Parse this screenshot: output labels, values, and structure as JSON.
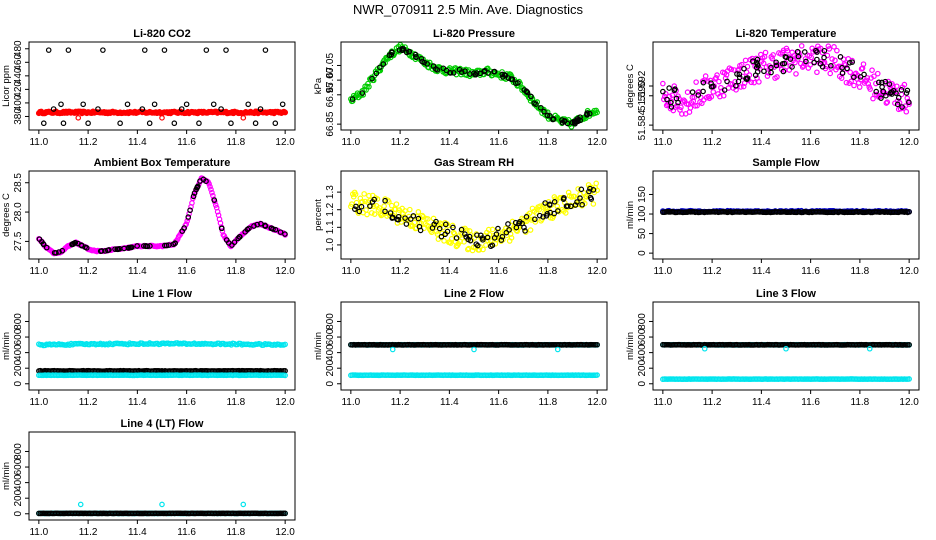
{
  "title": "NWR_070911  2.5 Min. Ave. Diagnostics",
  "chart_data": [
    {
      "type": "scatter",
      "id": "co2",
      "title": "Li-820 CO2",
      "ylabel": "Licor ppm",
      "xlim": [
        11.0,
        12.0
      ],
      "ylim": [
        360,
        490
      ],
      "xticks": [
        "11.0",
        "11.2",
        "11.4",
        "11.6",
        "11.8",
        "12.0"
      ],
      "yticks": [
        "380",
        "400",
        "420",
        "440",
        "460",
        "480"
      ],
      "series": [
        {
          "color": "#ff0000",
          "values": [
            {
              "x": [
                11.0,
                12.0
              ],
              "y": 386,
              "kind": "band"
            },
            {
              "x": [
                11.16,
                11.5,
                11.83
              ],
              "y": [
                378,
                378,
                378
              ]
            }
          ]
        },
        {
          "color": "#000000",
          "values": [
            {
              "x": [
                11.04,
                11.09,
                11.12,
                11.18,
                11.26,
                11.36,
                11.43,
                11.47,
                11.51,
                11.6,
                11.68,
                11.71,
                11.76,
                11.85,
                11.92,
                11.99
              ],
              "y": [
                478,
                398,
                478,
                398,
                478,
                398,
                478,
                398,
                478,
                398,
                478,
                398,
                478,
                398,
                478,
                398
              ]
            },
            {
              "x": [
                11.02,
                11.1,
                11.2,
                11.33,
                11.45,
                11.55,
                11.65,
                11.78,
                11.88,
                11.96
              ],
              "y": [
                370,
                370,
                370,
                370,
                370,
                370,
                370,
                370,
                370,
                370
              ]
            },
            {
              "x": [
                11.06,
                11.24,
                11.42,
                11.58,
                11.74,
                11.9
              ],
              "y": [
                391,
                391,
                391,
                391,
                391,
                391
              ]
            }
          ]
        }
      ]
    },
    {
      "type": "scatter",
      "id": "pressure",
      "title": "Li-820 Pressure",
      "ylabel": "kPa",
      "xlim": [
        11.0,
        12.0
      ],
      "ylim": [
        66.83,
        67.13
      ],
      "xticks": [
        "11.0",
        "11.2",
        "11.4",
        "11.6",
        "11.8",
        "12.0"
      ],
      "yticks": [
        "66.85",
        "66.95",
        "67.00",
        "67.05"
      ],
      "curve": {
        "x": [
          11.0,
          11.05,
          11.1,
          11.15,
          11.2,
          11.25,
          11.3,
          11.35,
          11.4,
          11.45,
          11.5,
          11.55,
          11.6,
          11.65,
          11.7,
          11.75,
          11.8,
          11.85,
          11.9,
          11.95,
          12.0
        ],
        "y": [
          66.93,
          66.96,
          67.02,
          67.08,
          67.11,
          67.09,
          67.06,
          67.04,
          67.03,
          67.03,
          67.02,
          67.03,
          67.02,
          67.01,
          66.97,
          66.92,
          66.88,
          66.86,
          66.85,
          66.88,
          66.9
        ]
      },
      "series": [
        {
          "color": "#00cc00",
          "spread": 0.012
        },
        {
          "color": "#000000",
          "spread": 0.006
        }
      ]
    },
    {
      "type": "scatter",
      "id": "temperature",
      "title": "Li-820 Temperature",
      "ylabel": "degrees C",
      "xlim": [
        11.0,
        12.0
      ],
      "ylim": [
        51.583,
        51.601
      ],
      "xticks": [
        "11.0",
        "11.2",
        "11.4",
        "11.6",
        "11.8",
        "12.0"
      ],
      "yticks": [
        "51.584",
        "51.590",
        "51.592"
      ],
      "curve": {
        "x": [
          11.0,
          11.1,
          11.2,
          11.3,
          11.4,
          11.5,
          11.6,
          11.7,
          11.8,
          11.9,
          12.0
        ],
        "y": [
          51.59,
          51.589,
          51.592,
          51.594,
          51.596,
          51.597,
          51.598,
          51.597,
          51.594,
          51.591,
          51.589
        ]
      },
      "series": [
        {
          "color": "#ff00ff",
          "spread": 0.003
        },
        {
          "color": "#000000",
          "spread": 0.002
        }
      ]
    },
    {
      "type": "scatter",
      "id": "ambient",
      "title": "Ambient Box Temperature",
      "ylabel": "degrees C",
      "xlim": [
        11.0,
        12.0
      ],
      "ylim": [
        27.2,
        28.7
      ],
      "xticks": [
        "11.0",
        "11.2",
        "11.4",
        "11.6",
        "11.8",
        "12.0"
      ],
      "yticks": [
        "27.5",
        "28.0",
        "28.5"
      ],
      "curve": {
        "x": [
          11.0,
          11.03,
          11.06,
          11.09,
          11.12,
          11.15,
          11.18,
          11.21,
          11.25,
          11.3,
          11.35,
          11.4,
          11.45,
          11.5,
          11.55,
          11.6,
          11.63,
          11.66,
          11.69,
          11.72,
          11.75,
          11.78,
          11.82,
          11.86,
          11.9,
          11.94,
          11.97,
          12.0
        ],
        "y": [
          27.55,
          27.4,
          27.3,
          27.32,
          27.42,
          27.48,
          27.42,
          27.35,
          27.33,
          27.36,
          27.38,
          27.42,
          27.42,
          27.42,
          27.45,
          27.8,
          28.3,
          28.58,
          28.5,
          28.1,
          27.6,
          27.42,
          27.6,
          27.75,
          27.8,
          27.73,
          27.68,
          27.62
        ]
      },
      "series": [
        {
          "color": "#ff00ff",
          "spread": 0.01
        },
        {
          "color": "#000000",
          "spread": 0.005
        }
      ]
    },
    {
      "type": "scatter",
      "id": "rh",
      "title": "Gas Stream RH",
      "ylabel": "percent",
      "xlim": [
        11.0,
        12.0
      ],
      "ylim": [
        0.92,
        1.42
      ],
      "xticks": [
        "11.0",
        "11.2",
        "11.4",
        "11.6",
        "11.8",
        "12.0"
      ],
      "yticks": [
        "1.0",
        "1.1",
        "1.2",
        "1.3"
      ],
      "curve": {
        "x": [
          11.0,
          11.1,
          11.2,
          11.3,
          11.4,
          11.5,
          11.55,
          11.6,
          11.7,
          11.8,
          11.9,
          12.0
        ],
        "y": [
          1.25,
          1.22,
          1.18,
          1.12,
          1.06,
          1.02,
          1.03,
          1.05,
          1.12,
          1.2,
          1.25,
          1.3
        ]
      },
      "series": [
        {
          "color": "#ffff00",
          "spread": 0.06
        },
        {
          "color": "#000000",
          "spread": 0.05
        }
      ]
    },
    {
      "type": "scatter",
      "id": "sample",
      "title": "Sample Flow",
      "ylabel": "ml/min",
      "xlim": [
        11.0,
        12.0
      ],
      "ylim": [
        -15,
        210
      ],
      "xticks": [
        "11.0",
        "11.2",
        "11.4",
        "11.6",
        "11.8",
        "12.0"
      ],
      "yticks": [
        "0",
        "50",
        "100",
        "150"
      ],
      "series": [
        {
          "color": "#0000cc",
          "y": 107,
          "spread": 3
        },
        {
          "color": "#000000",
          "y": 105,
          "spread": 2
        }
      ]
    },
    {
      "type": "scatter",
      "id": "line1",
      "title": "Line 1 Flow",
      "ylabel": "ml/min",
      "xlim": [
        11.0,
        12.0
      ],
      "ylim": [
        -80,
        1050
      ],
      "xticks": [
        "11.0",
        "11.2",
        "11.4",
        "11.6",
        "11.8",
        "12.0"
      ],
      "yticks": [
        "0",
        "200",
        "400",
        "600",
        "800"
      ],
      "series": [
        {
          "color": "#00e5ee",
          "y": 500,
          "spread": 20,
          "wave": 25
        },
        {
          "color": "#000000",
          "y": 165,
          "spread": 6
        },
        {
          "color": "#00e5ee",
          "y": 110,
          "spread": 5
        }
      ]
    },
    {
      "type": "scatter",
      "id": "line2",
      "title": "Line 2 Flow",
      "ylabel": "ml/min",
      "xlim": [
        11.0,
        12.0
      ],
      "ylim": [
        -80,
        1050
      ],
      "xticks": [
        "11.0",
        "11.2",
        "11.4",
        "11.6",
        "11.8",
        "12.0"
      ],
      "yticks": [
        "0",
        "200",
        "400",
        "600",
        "800"
      ],
      "series": [
        {
          "color": "#00e5ee",
          "y": 500,
          "spread": 4
        },
        {
          "color": "#000000",
          "y": 500,
          "spread": 4
        },
        {
          "color": "#00e5ee",
          "y": 110,
          "spread": 4
        }
      ],
      "outliers": {
        "color": "#00e5ee",
        "x": [
          11.17,
          11.5,
          11.84
        ],
        "y": [
          440,
          440,
          440
        ]
      }
    },
    {
      "type": "scatter",
      "id": "line3",
      "title": "Line 3 Flow",
      "ylabel": "ml/min",
      "xlim": [
        11.0,
        12.0
      ],
      "ylim": [
        -80,
        1050
      ],
      "xticks": [
        "11.0",
        "11.2",
        "11.4",
        "11.6",
        "11.8",
        "12.0"
      ],
      "yticks": [
        "0",
        "200",
        "400",
        "600",
        "800"
      ],
      "series": [
        {
          "color": "#00e5ee",
          "y": 500,
          "spread": 4
        },
        {
          "color": "#000000",
          "y": 500,
          "spread": 4
        },
        {
          "color": "#00e5ee",
          "y": 60,
          "spread": 3
        }
      ],
      "outliers": {
        "color": "#00e5ee",
        "x": [
          11.17,
          11.5,
          11.84
        ],
        "y": [
          450,
          450,
          450
        ]
      }
    },
    {
      "type": "scatter",
      "id": "line4",
      "title": "Line 4 (LT) Flow",
      "ylabel": "ml/min",
      "xlim": [
        11.0,
        12.0
      ],
      "ylim": [
        -80,
        1050
      ],
      "xticks": [
        "11.0",
        "11.2",
        "11.4",
        "11.6",
        "11.8",
        "12.0"
      ],
      "yticks": [
        "0",
        "200",
        "400",
        "600",
        "800"
      ],
      "series": [
        {
          "color": "#00e5ee",
          "y": 5,
          "spread": 3
        },
        {
          "color": "#000000",
          "y": 5,
          "spread": 3
        }
      ],
      "outliers": {
        "color": "#00e5ee",
        "x": [
          11.17,
          11.5,
          11.83
        ],
        "y": [
          120,
          120,
          120
        ]
      }
    }
  ]
}
